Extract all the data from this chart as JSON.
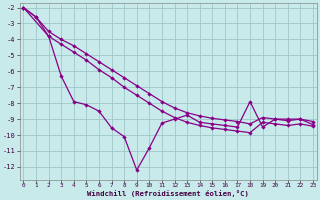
{
  "xlabel": "Windchill (Refroidissement éolien,°C)",
  "background_color": "#c8eaea",
  "grid_color": "#a0c8c8",
  "line_color": "#880088",
  "xlim_min": -0.3,
  "xlim_max": 23.3,
  "ylim_min": -12.8,
  "ylim_max": -1.7,
  "yticks": [
    -2,
    -3,
    -4,
    -5,
    -6,
    -7,
    -8,
    -9,
    -10,
    -11,
    -12
  ],
  "xticks": [
    0,
    1,
    2,
    3,
    4,
    5,
    6,
    7,
    8,
    9,
    10,
    11,
    12,
    13,
    14,
    15,
    16,
    17,
    18,
    19,
    20,
    21,
    22,
    23
  ],
  "line1_x": [
    0,
    1,
    2,
    3,
    4,
    5,
    6,
    7,
    8,
    9,
    10,
    11,
    12,
    13,
    14,
    15,
    16,
    17,
    18,
    19,
    20,
    21,
    22,
    23
  ],
  "line1_y": [
    -2.0,
    -2.6,
    -3.5,
    -4.0,
    -4.4,
    -4.9,
    -5.4,
    -5.9,
    -6.4,
    -6.9,
    -7.4,
    -7.9,
    -8.3,
    -8.6,
    -8.8,
    -8.95,
    -9.05,
    -9.15,
    -9.3,
    -8.9,
    -9.0,
    -9.1,
    -9.0,
    -9.15
  ],
  "line2_x": [
    0,
    2,
    3,
    4,
    5,
    6,
    7,
    8,
    9,
    10,
    11,
    12,
    13,
    14,
    15,
    16,
    17,
    18,
    19,
    20,
    21,
    22,
    23
  ],
  "line2_y": [
    -2.0,
    -3.8,
    -4.3,
    -4.8,
    -5.3,
    -5.9,
    -6.4,
    -7.0,
    -7.5,
    -8.0,
    -8.5,
    -8.9,
    -9.2,
    -9.4,
    -9.55,
    -9.65,
    -9.75,
    -9.85,
    -9.2,
    -9.3,
    -9.4,
    -9.3,
    -9.45
  ],
  "line3_x": [
    0,
    1,
    2,
    3,
    4,
    5,
    6,
    7,
    8,
    9,
    10,
    11,
    12,
    13,
    14,
    15,
    16,
    17,
    18,
    19,
    20,
    21,
    22,
    23
  ],
  "line3_y": [
    -2.0,
    -2.6,
    -3.8,
    -6.3,
    -7.9,
    -8.1,
    -8.5,
    -9.55,
    -10.1,
    -12.2,
    -10.8,
    -9.25,
    -9.0,
    -8.75,
    -9.2,
    -9.3,
    -9.4,
    -9.5,
    -7.9,
    -9.5,
    -9.0,
    -9.0,
    -9.0,
    -9.35
  ]
}
